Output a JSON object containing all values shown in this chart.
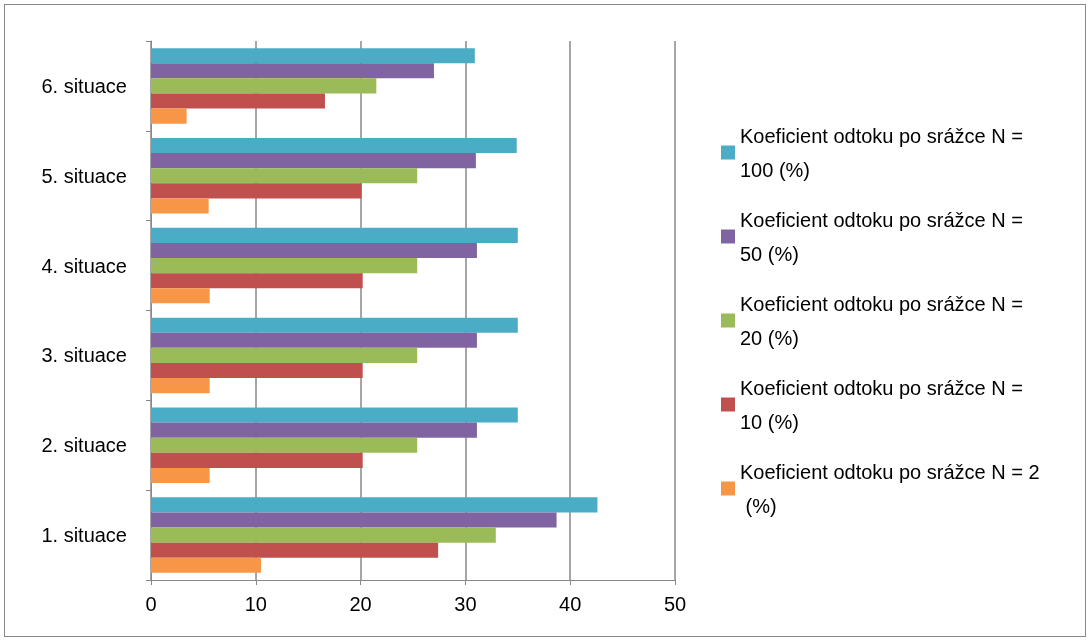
{
  "chart_data": {
    "type": "bar",
    "orientation": "horizontal",
    "categories": [
      "6. situace",
      "5. situace",
      "4. situace",
      "3. situace",
      "2. situace",
      "1. situace"
    ],
    "series": [
      {
        "name": "Koeficient odtoku po srážce N = 100 (%)",
        "color": "#4bacc6",
        "values": [
          30.9,
          34.9,
          35,
          35,
          35,
          42.6
        ]
      },
      {
        "name": "Koeficient odtoku po srážce N = 50 (%)",
        "color": "#8064a2",
        "values": [
          27.0,
          31.0,
          31.1,
          31.1,
          31.1,
          38.7
        ]
      },
      {
        "name": "Koeficient odtoku po srážce N = 20 (%)",
        "color": "#9bbb59",
        "values": [
          21.5,
          25.4,
          25.4,
          25.4,
          25.4,
          32.9
        ]
      },
      {
        "name": "Koeficient odtoku po srážce N = 10 (%)",
        "color": "#c0504d",
        "values": [
          16.6,
          20.1,
          20.2,
          20.2,
          20.2,
          27.4
        ]
      },
      {
        "name": "Koeficient odtoku po srážce N = 2 (%)",
        "color": "#f79646",
        "values": [
          3.4,
          5.5,
          5.6,
          5.6,
          5.6,
          10.5
        ]
      }
    ],
    "xlim": [
      0,
      50
    ],
    "xticks": [
      0,
      10,
      20,
      30,
      40,
      50
    ],
    "grid": "x",
    "legend": "right"
  }
}
